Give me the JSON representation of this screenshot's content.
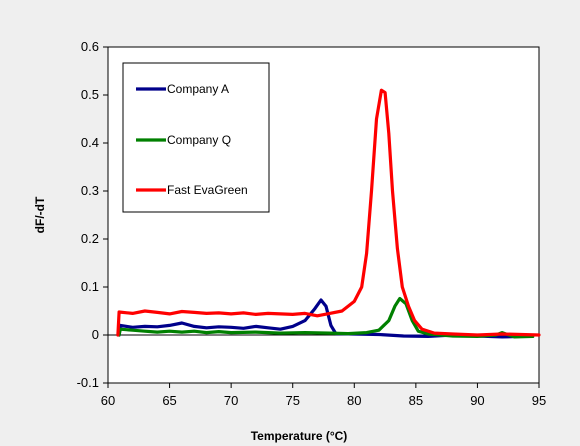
{
  "chart_data": {
    "type": "line",
    "title": "",
    "xlabel": "Temperature (°C)",
    "ylabel": "dF/-dT",
    "xlim": [
      60,
      95
    ],
    "ylim": [
      -0.1,
      0.6
    ],
    "x_ticks": [
      60,
      65,
      70,
      75,
      80,
      85,
      90,
      95
    ],
    "x_tick_labels": [
      "60",
      "65",
      "70",
      "75",
      "80",
      "85",
      "90",
      "95"
    ],
    "y_ticks": [
      -0.1,
      0,
      0.1,
      0.2,
      0.3,
      0.4,
      0.5,
      0.6
    ],
    "y_tick_labels": [
      "-0.1",
      "0",
      "0.1",
      "0.2",
      "0.3",
      "0.4",
      "0.5",
      "0.6"
    ],
    "grid": false,
    "legend_position": "top-left",
    "series": [
      {
        "name": "Company A",
        "color": "#00008b",
        "points": [
          [
            60.9,
            0.0
          ],
          [
            61.0,
            0.02
          ],
          [
            62,
            0.016
          ],
          [
            63,
            0.018
          ],
          [
            64,
            0.017
          ],
          [
            65,
            0.02
          ],
          [
            66,
            0.025
          ],
          [
            67,
            0.018
          ],
          [
            68,
            0.015
          ],
          [
            69,
            0.017
          ],
          [
            70,
            0.016
          ],
          [
            71,
            0.014
          ],
          [
            72,
            0.018
          ],
          [
            73,
            0.015
          ],
          [
            74,
            0.012
          ],
          [
            75,
            0.018
          ],
          [
            76,
            0.03
          ],
          [
            76.8,
            0.055
          ],
          [
            77.3,
            0.073
          ],
          [
            77.7,
            0.06
          ],
          [
            78.1,
            0.02
          ],
          [
            78.5,
            0.003
          ],
          [
            80,
            0.002
          ],
          [
            82,
            0.001
          ],
          [
            84,
            -0.002
          ],
          [
            86,
            -0.003
          ],
          [
            88,
            0.0
          ],
          [
            90,
            -0.002
          ],
          [
            92,
            -0.004
          ],
          [
            93.5,
            -0.003
          ]
        ]
      },
      {
        "name": "Company Q",
        "color": "#008000",
        "points": [
          [
            60.9,
            0.0
          ],
          [
            61.0,
            0.012
          ],
          [
            62,
            0.01
          ],
          [
            63,
            0.008
          ],
          [
            64,
            0.006
          ],
          [
            65,
            0.008
          ],
          [
            66,
            0.006
          ],
          [
            67,
            0.008
          ],
          [
            68,
            0.005
          ],
          [
            69,
            0.007
          ],
          [
            70,
            0.005
          ],
          [
            72,
            0.006
          ],
          [
            74,
            0.004
          ],
          [
            76,
            0.005
          ],
          [
            78,
            0.004
          ],
          [
            79.5,
            0.003
          ],
          [
            81,
            0.005
          ],
          [
            82,
            0.01
          ],
          [
            82.8,
            0.03
          ],
          [
            83.3,
            0.06
          ],
          [
            83.7,
            0.076
          ],
          [
            84.2,
            0.065
          ],
          [
            84.7,
            0.03
          ],
          [
            85.2,
            0.008
          ],
          [
            86,
            0.002
          ],
          [
            88,
            -0.002
          ],
          [
            90,
            -0.003
          ],
          [
            91.5,
            0.0
          ],
          [
            92,
            0.005
          ],
          [
            93,
            -0.004
          ],
          [
            94.5,
            -0.003
          ]
        ]
      },
      {
        "name": "Fast EvaGreen",
        "color": "#ff0000",
        "points": [
          [
            60.8,
            0.0
          ],
          [
            60.9,
            0.048
          ],
          [
            62,
            0.045
          ],
          [
            63,
            0.05
          ],
          [
            64,
            0.047
          ],
          [
            65,
            0.044
          ],
          [
            66,
            0.049
          ],
          [
            67,
            0.047
          ],
          [
            68,
            0.045
          ],
          [
            69,
            0.046
          ],
          [
            70,
            0.044
          ],
          [
            71,
            0.046
          ],
          [
            72,
            0.043
          ],
          [
            73,
            0.045
          ],
          [
            74,
            0.044
          ],
          [
            75,
            0.043
          ],
          [
            76,
            0.045
          ],
          [
            77,
            0.04
          ],
          [
            78,
            0.045
          ],
          [
            79,
            0.05
          ],
          [
            80,
            0.07
          ],
          [
            80.6,
            0.1
          ],
          [
            81.0,
            0.17
          ],
          [
            81.4,
            0.3
          ],
          [
            81.8,
            0.45
          ],
          [
            82.2,
            0.51
          ],
          [
            82.5,
            0.505
          ],
          [
            82.8,
            0.42
          ],
          [
            83.1,
            0.3
          ],
          [
            83.5,
            0.18
          ],
          [
            83.9,
            0.1
          ],
          [
            84.4,
            0.06
          ],
          [
            84.9,
            0.03
          ],
          [
            85.5,
            0.012
          ],
          [
            86.5,
            0.004
          ],
          [
            88,
            0.002
          ],
          [
            90,
            0.0
          ],
          [
            92,
            0.002
          ],
          [
            95,
            0.0
          ]
        ]
      }
    ]
  }
}
